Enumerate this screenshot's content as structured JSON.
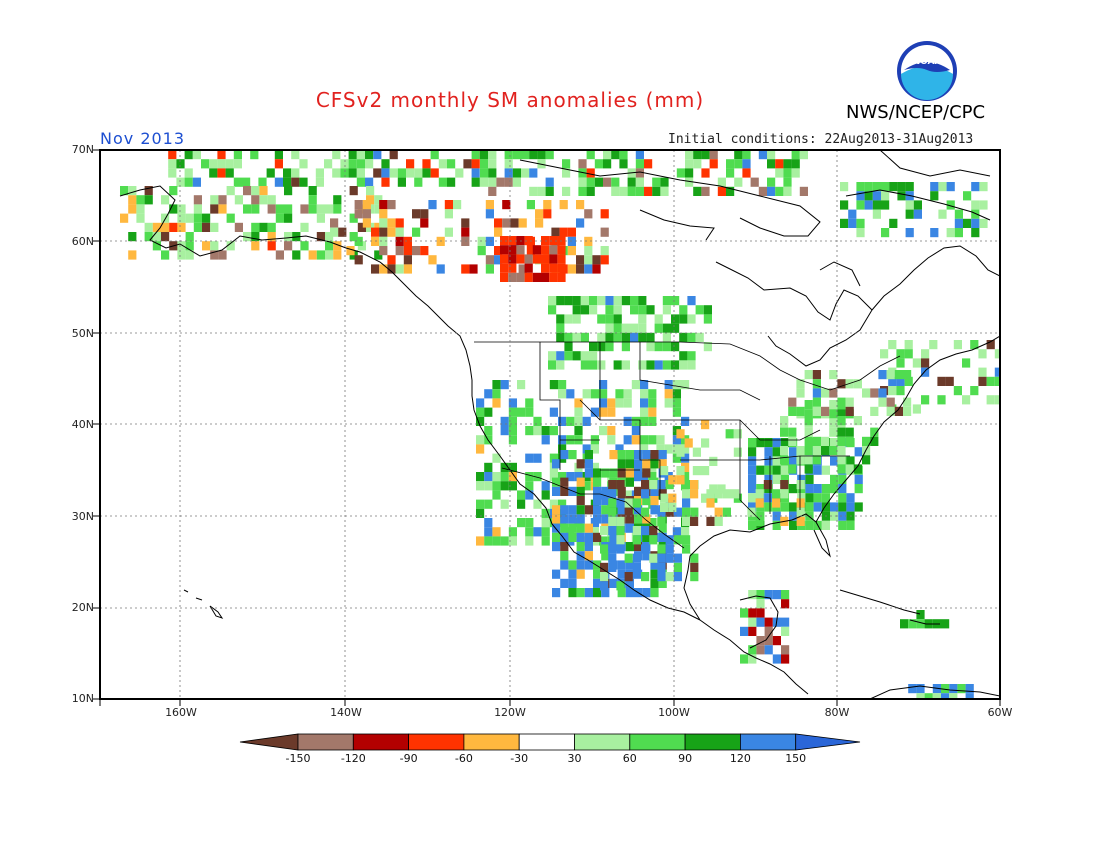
{
  "header": {
    "title": "CFSv2 monthly SM anomalies (mm)",
    "agency": "NWS/NCEP/CPC",
    "month": "Nov 2013",
    "initial_conditions": "Initial conditions: 22Aug2013-31Aug2013",
    "logo_text": "NOAA"
  },
  "axes": {
    "lat_labels": [
      "70N",
      "60N",
      "50N",
      "40N",
      "30N",
      "20N",
      "10N"
    ],
    "lon_labels": [
      "160W",
      "140W",
      "120W",
      "100W",
      "80W",
      "60W"
    ]
  },
  "colorbar": {
    "labels": [
      "-150",
      "-120",
      "-90",
      "-60",
      "-30",
      "30",
      "60",
      "90",
      "120",
      "150"
    ],
    "colors": [
      "#6b3a2a",
      "#a3786a",
      "#b30000",
      "#ff3300",
      "#ffb83f",
      "#ffffff",
      "#a8f0a0",
      "#50dc50",
      "#17a317",
      "#3a86e3",
      "#2a66d8"
    ]
  },
  "palette": {
    "brown": "#6b3a2a",
    "tan": "#a3786a",
    "darkred": "#b30000",
    "red": "#ff3300",
    "orange": "#ffb83f",
    "lightgreen": "#a8f0a0",
    "green": "#50dc50",
    "darkgreen": "#17a317",
    "blue": "#3a86e3"
  }
}
